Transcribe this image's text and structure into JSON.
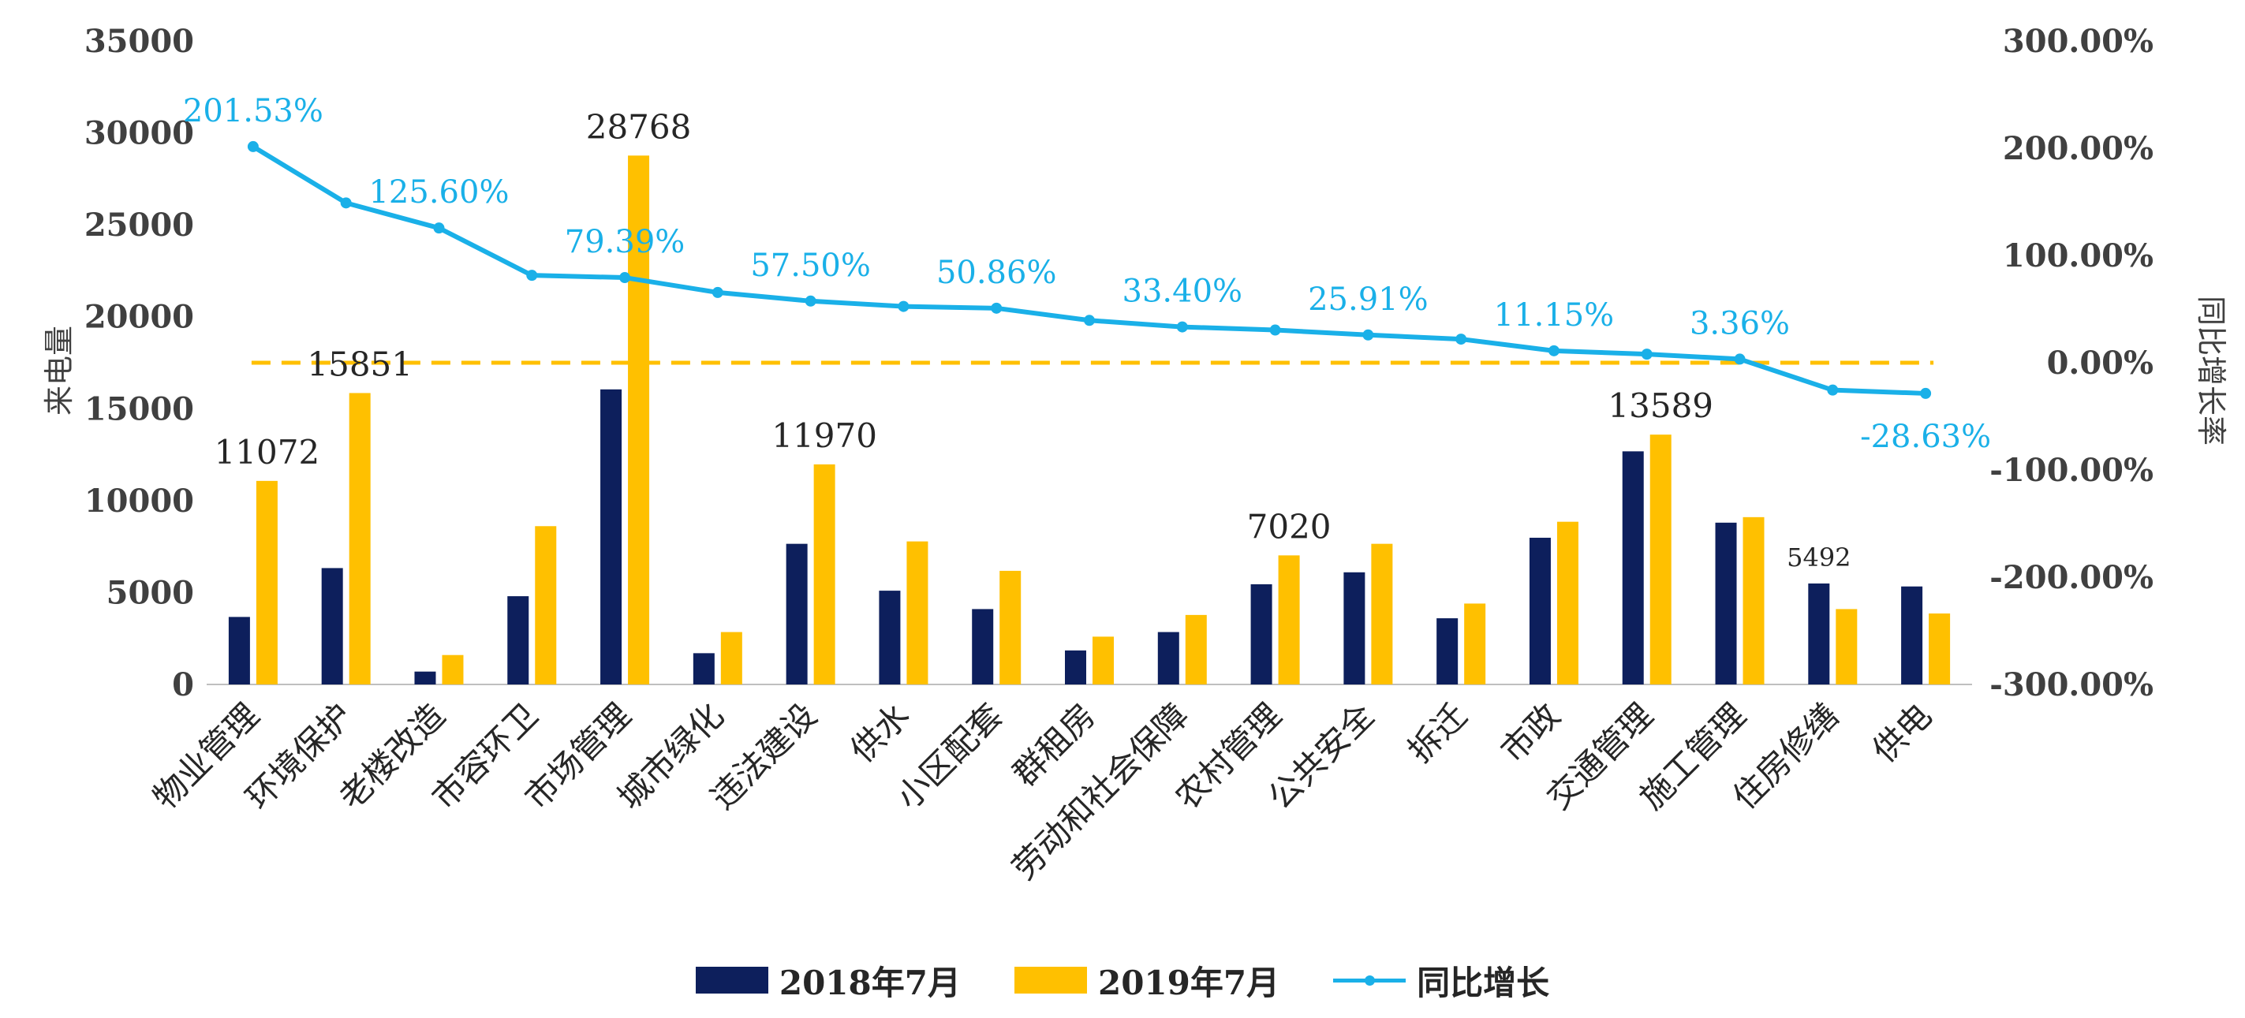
{
  "chart_data": {
    "type": "bar",
    "title": "",
    "ylabel": "来电量",
    "y2label": "同比增长率",
    "ylim": [
      0,
      35000
    ],
    "y2lim": [
      -300,
      300
    ],
    "y_ticks": [
      "0",
      "5000",
      "10000",
      "15000",
      "20000",
      "25000",
      "30000",
      "35000"
    ],
    "y2_ticks": [
      "-300.00%",
      "-200.00%",
      "-100.00%",
      "0.00%",
      "100.00%",
      "200.00%",
      "300.00%"
    ],
    "categories": [
      "物业管理",
      "环境保护",
      "老楼改造",
      "市容环卫",
      "市场管理",
      "城市绿化",
      "违法建设",
      "供水",
      "小区配套",
      "群租房",
      "劳动和社会保障",
      "农村管理",
      "公共安全",
      "拆迁",
      "市政",
      "交通管理",
      "施工管理",
      "住房修缮",
      "供电"
    ],
    "series": [
      {
        "name": "2018年7月",
        "kind": "bar",
        "color": "#0d1f5c",
        "values": [
          3672,
          6330,
          700,
          4800,
          16050,
          1700,
          7650,
          5100,
          4100,
          1850,
          2850,
          5450,
          6100,
          3600,
          7980,
          12680,
          8800,
          5492,
          5330
        ]
      },
      {
        "name": "2019年7月",
        "kind": "bar",
        "color": "#ffc000",
        "values": [
          11072,
          15851,
          1600,
          8610,
          28768,
          2850,
          11970,
          7780,
          6180,
          2600,
          3780,
          7020,
          7650,
          4400,
          8850,
          13589,
          9100,
          4100,
          3860
        ]
      },
      {
        "name": "同比增长",
        "kind": "line",
        "axis": "right",
        "color": "#1ab0e8",
        "values": [
          201.53,
          149.0,
          125.6,
          81.5,
          79.39,
          65.5,
          57.5,
          52.5,
          50.86,
          39.5,
          33.4,
          30.5,
          25.91,
          22.0,
          11.15,
          8.0,
          3.36,
          -25.5,
          -28.63
        ]
      }
    ],
    "bar_labels_2018": {
      "17": "5492"
    },
    "bar_labels_2019": {
      "0": "11072",
      "1": "15851",
      "4": "28768",
      "6": "11970",
      "11": "7020",
      "15": "13589"
    },
    "line_labels": {
      "0": "201.53%",
      "2": "125.60%",
      "4": "79.39%",
      "6": "57.50%",
      "8": "50.86%",
      "10": "33.40%",
      "12": "25.91%",
      "14": "11.15%",
      "16": "3.36%",
      "18": "-28.63%"
    },
    "reference_line": {
      "axis": "right",
      "value": 0,
      "color": "#ffc000",
      "style": "dashed"
    },
    "grid": false,
    "legend": "bottom"
  }
}
